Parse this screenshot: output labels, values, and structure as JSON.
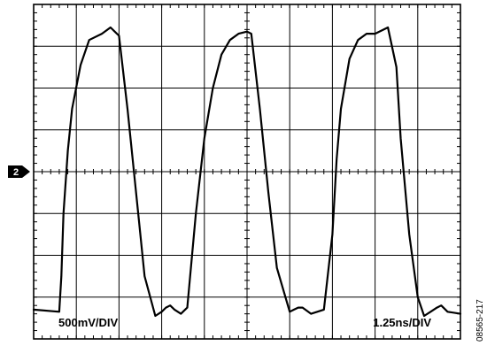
{
  "chart_data": {
    "type": "line",
    "title": "",
    "xlabel": "",
    "ylabel": "",
    "grid": true,
    "divisions": {
      "x": 10,
      "y": 8
    },
    "xlim": [
      0,
      10
    ],
    "ylim": [
      -4,
      4
    ],
    "x_units": "div",
    "y_units": "div",
    "channel_marker": {
      "label": "2",
      "level": 0
    },
    "scale_labels": {
      "vertical": "500mV/DIV",
      "horizontal": "1.25ns/DIV"
    },
    "figure_id": "08565-217",
    "series": [
      {
        "x": [
          0.0,
          0.6,
          0.65,
          0.7,
          0.8,
          0.9,
          1.1,
          1.3,
          1.6,
          1.8,
          2.0,
          2.2,
          2.45,
          2.6,
          2.85,
          3.0,
          3.1,
          3.2,
          3.3,
          3.45,
          3.6,
          3.8,
          4.0,
          4.2,
          4.4,
          4.6,
          4.8,
          5.0,
          5.1,
          5.3,
          5.5,
          5.7,
          6.0,
          6.1,
          6.2,
          6.3,
          6.5,
          6.8,
          7.0,
          7.1,
          7.2,
          7.4,
          7.6,
          7.8,
          8.0,
          8.3,
          8.5,
          8.6,
          8.8,
          9.0,
          9.15,
          9.3,
          9.45,
          9.55,
          9.7,
          10.0
        ],
        "values": [
          -3.3,
          -3.35,
          -2.5,
          -1.0,
          0.5,
          1.5,
          2.55,
          3.15,
          3.3,
          3.45,
          3.25,
          1.5,
          -1.0,
          -2.5,
          -3.45,
          -3.35,
          -3.25,
          -3.2,
          -3.3,
          -3.4,
          -3.25,
          -1.0,
          0.8,
          2.0,
          2.8,
          3.15,
          3.3,
          3.35,
          3.3,
          1.5,
          -0.5,
          -2.3,
          -3.35,
          -3.3,
          -3.25,
          -3.25,
          -3.4,
          -3.3,
          -1.5,
          0.3,
          1.5,
          2.7,
          3.15,
          3.3,
          3.3,
          3.45,
          2.5,
          0.8,
          -1.5,
          -3.0,
          -3.45,
          -3.35,
          -3.25,
          -3.2,
          -3.35,
          -3.4
        ]
      }
    ]
  }
}
